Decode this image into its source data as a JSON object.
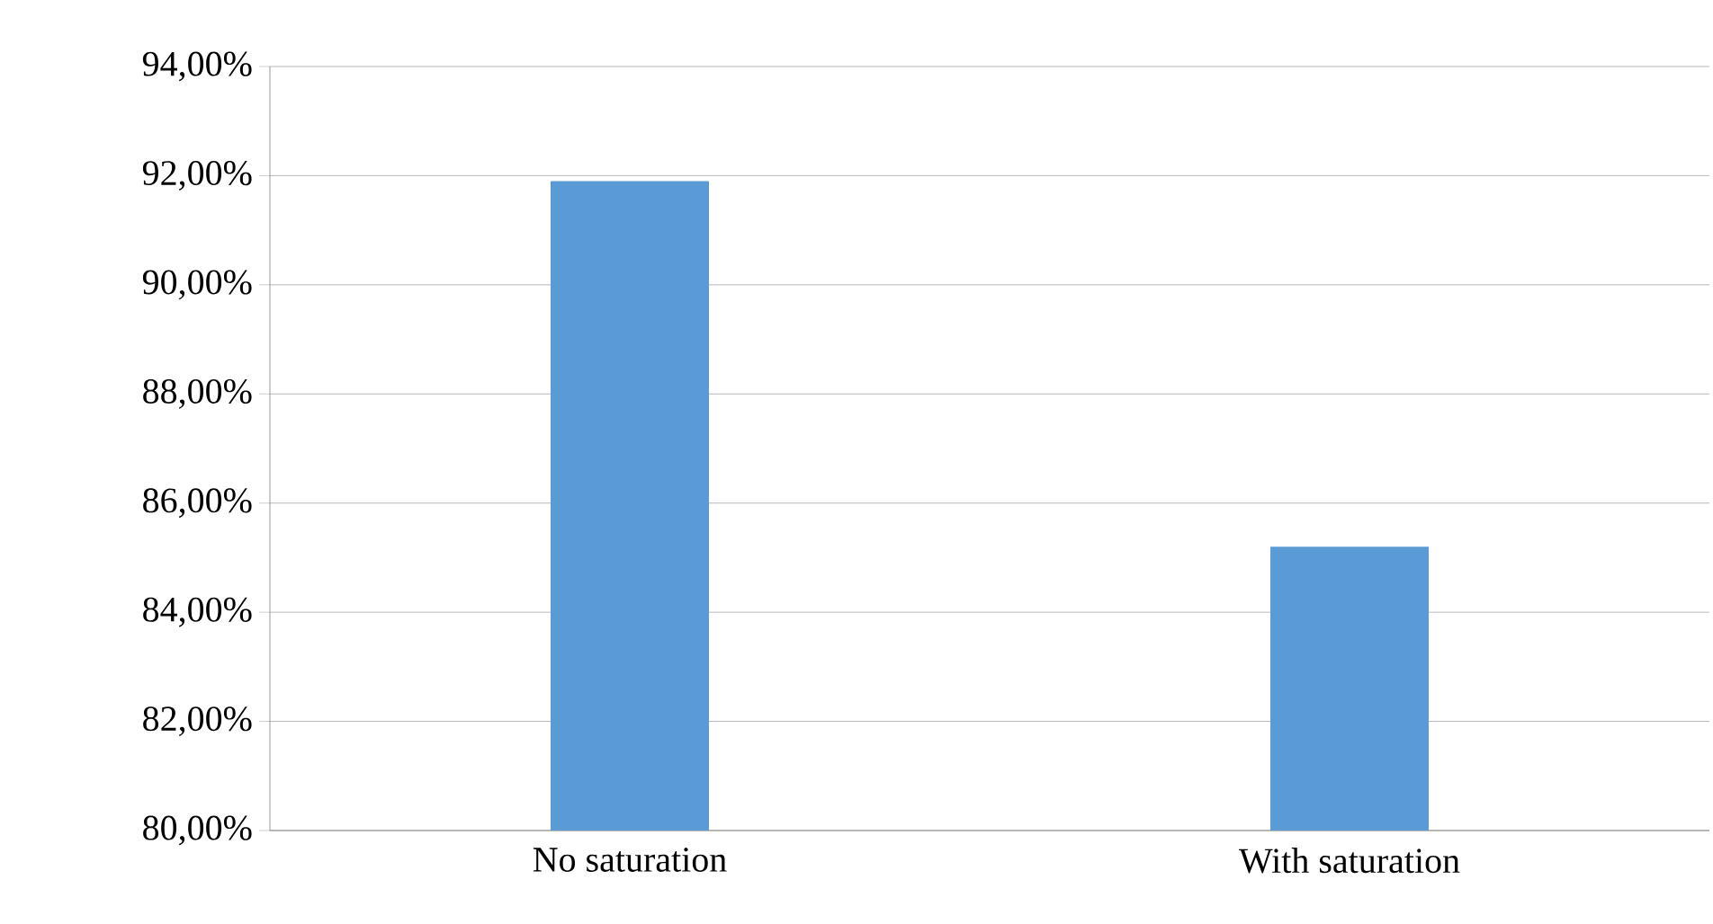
{
  "chart_data": {
    "type": "bar",
    "categories": [
      "No saturation",
      "With saturation"
    ],
    "values": [
      91.9,
      85.2
    ],
    "color": "#5b9bd5",
    "ylim": [
      80,
      94
    ],
    "yticks": [
      {
        "value": 80,
        "label": "80,00%"
      },
      {
        "value": 82,
        "label": "82,00%"
      },
      {
        "value": 84,
        "label": "84,00%"
      },
      {
        "value": 86,
        "label": "86,00%"
      },
      {
        "value": 88,
        "label": "88,00%"
      },
      {
        "value": 90,
        "label": "90,00%"
      },
      {
        "value": 92,
        "label": "92,00%"
      },
      {
        "value": 94,
        "label": "94,00%"
      }
    ],
    "grid": "y"
  }
}
